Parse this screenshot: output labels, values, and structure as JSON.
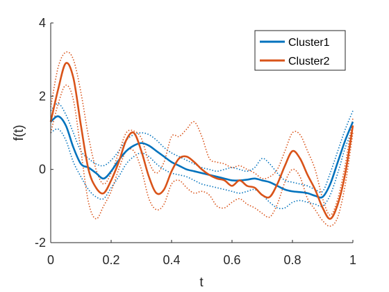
{
  "chart_data": {
    "type": "line",
    "title": "",
    "xlabel": "t",
    "ylabel": "f(t)",
    "xlim": [
      0,
      1
    ],
    "ylim": [
      -2,
      4
    ],
    "xticks": [
      0,
      0.2,
      0.4,
      0.6,
      0.8,
      1
    ],
    "xtick_labels": [
      "0",
      "0.2",
      "0.4",
      "0.6",
      "0.8",
      "1"
    ],
    "yticks": [
      -2,
      0,
      2,
      4
    ],
    "ytick_labels": [
      "-2",
      "0",
      "2",
      "4"
    ],
    "grid": false,
    "legend_position": "top-right",
    "x": [
      0,
      0.025,
      0.05,
      0.075,
      0.1,
      0.125,
      0.15,
      0.175,
      0.2,
      0.225,
      0.25,
      0.275,
      0.3,
      0.325,
      0.35,
      0.375,
      0.4,
      0.425,
      0.45,
      0.475,
      0.5,
      0.525,
      0.55,
      0.575,
      0.6,
      0.625,
      0.65,
      0.675,
      0.7,
      0.725,
      0.75,
      0.775,
      0.8,
      0.825,
      0.85,
      0.875,
      0.9,
      0.925,
      0.95,
      0.975,
      1
    ],
    "series": [
      {
        "name": "Cluster1",
        "color": "#0072BD",
        "style": "solid",
        "values": [
          1.3,
          1.45,
          1.2,
          0.6,
          0.15,
          0.05,
          -0.1,
          -0.25,
          -0.05,
          0.25,
          0.5,
          0.65,
          0.72,
          0.65,
          0.5,
          0.35,
          0.2,
          0.1,
          0.0,
          -0.05,
          -0.1,
          -0.15,
          -0.2,
          -0.25,
          -0.3,
          -0.3,
          -0.28,
          -0.25,
          -0.3,
          -0.35,
          -0.45,
          -0.55,
          -0.6,
          -0.62,
          -0.65,
          -0.72,
          -0.75,
          -0.4,
          0.2,
          0.8,
          1.3
        ]
      },
      {
        "name": "Cluster1 upper",
        "color": "#0072BD",
        "style": "dotted",
        "values": [
          1.6,
          1.8,
          1.5,
          1.0,
          0.5,
          0.3,
          0.15,
          0.1,
          0.25,
          0.5,
          0.8,
          0.95,
          1.0,
          0.95,
          0.8,
          0.6,
          0.45,
          0.35,
          0.25,
          0.15,
          0.05,
          0.0,
          -0.05,
          0.0,
          0.05,
          0.0,
          -0.05,
          0.05,
          0.3,
          0.15,
          -0.1,
          -0.3,
          -0.35,
          -0.4,
          -0.45,
          -0.55,
          -0.6,
          -0.1,
          0.5,
          1.1,
          1.6
        ]
      },
      {
        "name": "Cluster1 lower",
        "color": "#0072BD",
        "style": "dotted",
        "values": [
          1.0,
          1.1,
          0.8,
          0.2,
          -0.2,
          -0.55,
          -0.75,
          -0.8,
          -0.5,
          -0.2,
          0.15,
          0.35,
          0.45,
          0.35,
          0.15,
          0.0,
          -0.1,
          -0.15,
          -0.2,
          -0.3,
          -0.4,
          -0.45,
          -0.5,
          -0.55,
          -0.6,
          -0.65,
          -0.6,
          -0.55,
          -0.7,
          -0.9,
          -1.05,
          -1.05,
          -0.9,
          -0.85,
          -0.9,
          -0.95,
          -1.0,
          -0.7,
          -0.1,
          0.6,
          1.1
        ]
      },
      {
        "name": "Cluster2",
        "color": "#D95319",
        "style": "solid",
        "values": [
          1.3,
          2.2,
          2.9,
          2.5,
          1.2,
          0.0,
          -0.5,
          -0.65,
          -0.3,
          0.2,
          0.8,
          1.0,
          0.5,
          -0.2,
          -0.65,
          -0.55,
          -0.05,
          0.3,
          0.35,
          0.2,
          0.0,
          -0.15,
          -0.25,
          -0.3,
          -0.45,
          -0.3,
          -0.45,
          -0.5,
          -0.7,
          -0.75,
          -0.4,
          0.1,
          0.5,
          0.3,
          -0.15,
          -0.55,
          -1.05,
          -1.35,
          -0.95,
          -0.1,
          1.2
        ]
      },
      {
        "name": "Cluster2 upper",
        "color": "#D95319",
        "style": "dotted",
        "values": [
          1.7,
          2.8,
          3.2,
          3.0,
          2.1,
          0.9,
          0.0,
          -0.4,
          -0.1,
          0.45,
          1.0,
          1.05,
          0.85,
          0.2,
          -0.1,
          0.2,
          0.9,
          0.9,
          1.1,
          1.3,
          0.9,
          0.3,
          0.2,
          0.15,
          0.05,
          0.1,
          0.0,
          -0.1,
          -0.25,
          -0.2,
          0.0,
          0.5,
          1.0,
          0.95,
          0.5,
          0.0,
          -0.8,
          -1.25,
          -0.8,
          0.15,
          1.4
        ]
      },
      {
        "name": "Cluster2 lower",
        "color": "#D95319",
        "style": "dotted",
        "values": [
          1.0,
          1.8,
          2.3,
          1.9,
          0.5,
          -0.9,
          -1.35,
          -1.0,
          -0.6,
          0.0,
          0.5,
          0.5,
          0.0,
          -0.8,
          -1.1,
          -0.95,
          -0.4,
          -0.3,
          -0.5,
          -0.65,
          -0.6,
          -0.7,
          -1.0,
          -1.05,
          -0.9,
          -0.8,
          -0.95,
          -1.05,
          -1.2,
          -1.3,
          -0.95,
          -0.35,
          0.0,
          -0.2,
          -0.8,
          -1.1,
          -1.4,
          -1.55,
          -1.3,
          -0.4,
          1.0
        ]
      }
    ],
    "legend": [
      {
        "label": "Cluster1",
        "color": "#0072BD"
      },
      {
        "label": "Cluster2",
        "color": "#D95319"
      }
    ]
  }
}
